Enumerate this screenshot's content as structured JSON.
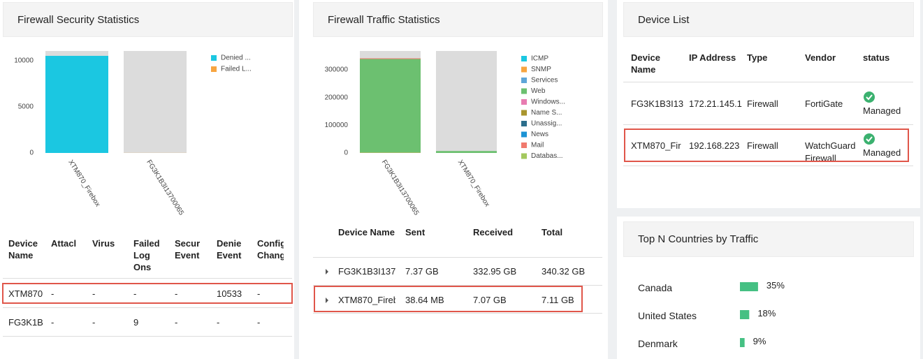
{
  "chart_data": [
    {
      "type": "stacked-bar",
      "title": "Firewall Security Statistics",
      "categories": [
        "XTM870_Firebox",
        "FG3K1B3I13700065"
      ],
      "series": [
        {
          "name": "Denied ...",
          "color": "#1bc7e1",
          "values": [
            10533,
            0
          ]
        },
        {
          "name": "Failed L...",
          "color": "#f7a540",
          "values": [
            0,
            9
          ]
        }
      ],
      "ylim": [
        0,
        11060
      ],
      "yticks": [
        0,
        5000,
        10000
      ],
      "grid": false,
      "legend": "right"
    },
    {
      "type": "stacked-bar",
      "title": "Firewall Traffic Statistics",
      "categories": [
        "FG3K1B3I13700065",
        "XTM870_Firebox"
      ],
      "series": [
        {
          "name": "ICMP",
          "color": "#1bc7e1",
          "values": [
            0,
            0
          ]
        },
        {
          "name": "SNMP",
          "color": "#f7a540",
          "values": [
            1000,
            0
          ]
        },
        {
          "name": "Services",
          "color": "#5ea6d8",
          "values": [
            0,
            0
          ]
        },
        {
          "name": "Web",
          "color": "#6cc070",
          "values": [
            338000,
            7000
          ]
        },
        {
          "name": "Windows...",
          "color": "#e87cb1",
          "values": [
            0,
            0
          ]
        },
        {
          "name": "Name S...",
          "color": "#a9952e",
          "values": [
            0,
            0
          ]
        },
        {
          "name": "Unassig...",
          "color": "#2c6e8c",
          "values": [
            0,
            0
          ]
        },
        {
          "name": "News",
          "color": "#1c93d4",
          "values": [
            0,
            0
          ]
        },
        {
          "name": "Mail",
          "color": "#f07a6e",
          "values": [
            2500,
            0
          ]
        },
        {
          "name": "Databas...",
          "color": "#a3c85e",
          "values": [
            0,
            0
          ]
        }
      ],
      "ylim": [
        0,
        368000
      ],
      "yticks": [
        0,
        100000,
        200000,
        300000
      ],
      "grid": false,
      "legend": "right"
    },
    {
      "type": "hbar",
      "title": "Top N Countries by Traffic",
      "categories": [
        "Canada",
        "United States",
        "Denmark"
      ],
      "values": [
        35,
        18,
        9
      ],
      "value_labels": [
        "35%",
        "18%",
        "9%"
      ],
      "color": "#45c083",
      "xlim": [
        0,
        100
      ]
    }
  ],
  "panels": {
    "device_list": {
      "title": "Device List"
    }
  },
  "tables": [
    {
      "columns": [
        "Device Name",
        "Attacl",
        "Virus",
        "Failed Log Ons",
        "Securi Event",
        "Denie Event",
        "Config Chang"
      ],
      "rows": [
        [
          "XTM870",
          "-",
          "-",
          "-",
          "-",
          "10533",
          "-"
        ],
        [
          "FG3K1B",
          "-",
          "-",
          "9",
          "-",
          "-",
          "-"
        ]
      ]
    },
    {
      "columns": [
        "Device Name",
        "Sent",
        "Received",
        "Total"
      ],
      "rows": [
        [
          "FG3K1B3I137",
          "7.37 GB",
          "332.95 GB",
          "340.32 GB"
        ],
        [
          "XTM870_Fireb",
          "38.64 MB",
          "7.07 GB",
          "7.11 GB"
        ]
      ]
    },
    {
      "columns": [
        "Device Name",
        "IP Address",
        "Type",
        "Vendor",
        "status"
      ],
      "rows": [
        [
          "FG3K1B3I13",
          "172.21.145.1",
          "Firewall",
          "FortiGate",
          "Managed"
        ],
        [
          "XTM870_Fir",
          "192.168.223",
          "Firewall",
          "WatchGuard Firewall",
          "Managed"
        ]
      ]
    }
  ]
}
